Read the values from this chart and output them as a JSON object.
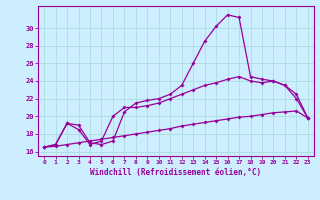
{
  "xlabel": "Windchill (Refroidissement éolien,°C)",
  "bg_color": "#cceeff",
  "grid_color": "#aadddd",
  "line_color": "#990099",
  "xlim": [
    -0.5,
    23.5
  ],
  "ylim": [
    15.5,
    32.5
  ],
  "xticks": [
    0,
    1,
    2,
    3,
    4,
    5,
    6,
    7,
    8,
    9,
    10,
    11,
    12,
    13,
    14,
    15,
    16,
    17,
    18,
    19,
    20,
    21,
    22,
    23
  ],
  "yticks": [
    16,
    18,
    20,
    22,
    24,
    26,
    28,
    30
  ],
  "line1_x": [
    0,
    1,
    2,
    3,
    4,
    5,
    6,
    7,
    8,
    9,
    10,
    11,
    12,
    13,
    14,
    15,
    16,
    17,
    18,
    19,
    20,
    21,
    22,
    23
  ],
  "line1_y": [
    16.5,
    16.8,
    19.2,
    19.0,
    17.0,
    16.8,
    17.2,
    20.5,
    21.5,
    21.8,
    22.0,
    22.5,
    23.5,
    26.0,
    28.5,
    30.2,
    31.5,
    31.2,
    24.5,
    24.2,
    24.0,
    23.5,
    22.0,
    19.8
  ],
  "line2_x": [
    0,
    1,
    2,
    3,
    4,
    5,
    6,
    7,
    8,
    9,
    10,
    11,
    12,
    13,
    14,
    15,
    16,
    17,
    18,
    19,
    20,
    21,
    22,
    23
  ],
  "line2_y": [
    16.5,
    16.8,
    19.2,
    18.5,
    16.8,
    17.2,
    20.0,
    21.0,
    21.0,
    21.2,
    21.5,
    22.0,
    22.5,
    23.0,
    23.5,
    23.8,
    24.2,
    24.5,
    24.0,
    23.8,
    24.0,
    23.5,
    22.5,
    19.8
  ],
  "line3_x": [
    0,
    1,
    2,
    3,
    4,
    5,
    6,
    7,
    8,
    9,
    10,
    11,
    12,
    13,
    14,
    15,
    16,
    17,
    18,
    19,
    20,
    21,
    22,
    23
  ],
  "line3_y": [
    16.5,
    16.6,
    16.8,
    17.0,
    17.2,
    17.4,
    17.6,
    17.8,
    18.0,
    18.2,
    18.4,
    18.6,
    18.9,
    19.1,
    19.3,
    19.5,
    19.7,
    19.9,
    20.0,
    20.2,
    20.4,
    20.5,
    20.6,
    19.8
  ]
}
